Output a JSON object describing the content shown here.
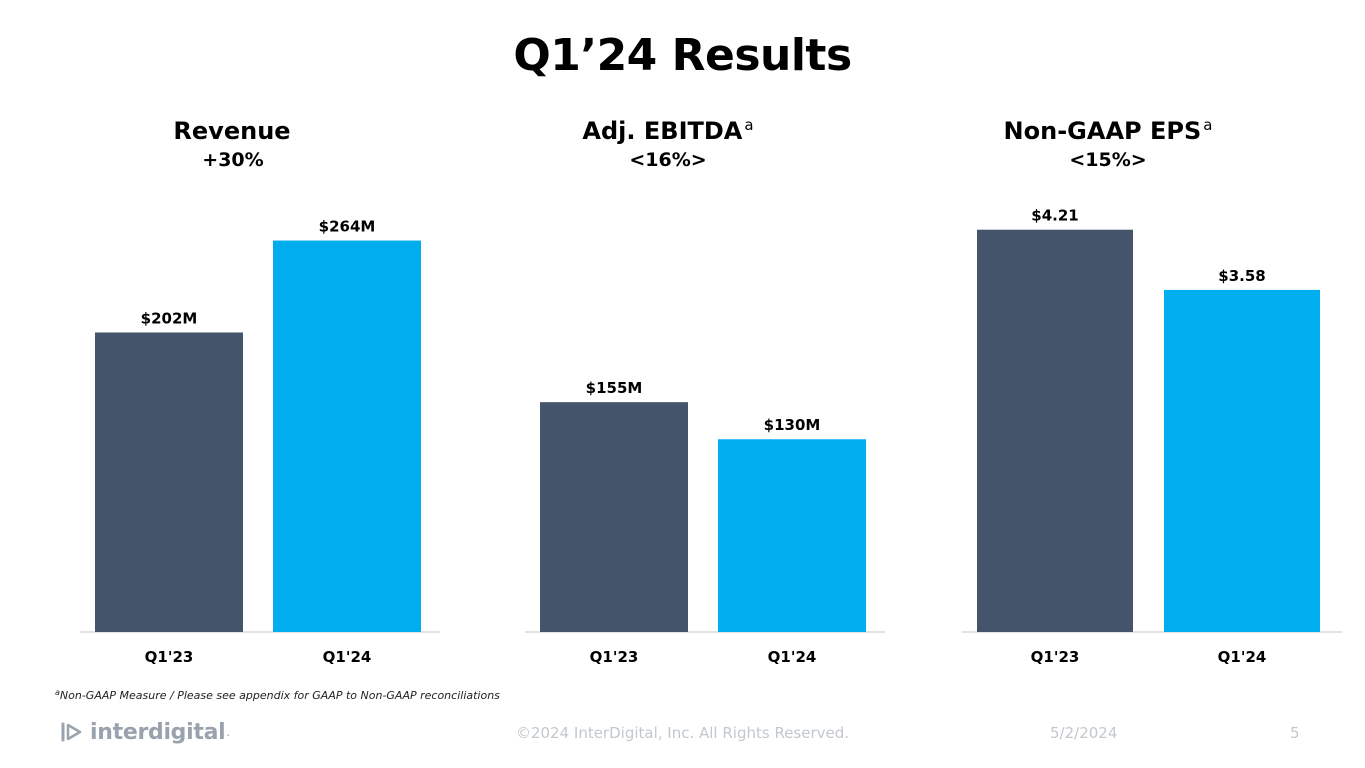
{
  "slide": {
    "title": "Q1’24 Results",
    "footnote_marker": "a",
    "footnote": "Non-GAAP Measure / Please see appendix for GAAP to Non-GAAP reconciliations",
    "logo_text": "interdigital",
    "logo_suffix": ".",
    "copyright": "©2024 InterDigital, Inc. All Rights Reserved.",
    "date": "5/2/2024",
    "page_number": "5"
  },
  "colors": {
    "q1_23": "#44546A",
    "q1_24": "#00AEEF",
    "baseline": "#d9d9d9",
    "text": "#000000",
    "muted": "#9aa3ad"
  },
  "chart_data": [
    {
      "type": "bar",
      "title": "Revenue",
      "title_marker": "",
      "change": "+30%",
      "categories": [
        "Q1'23",
        "Q1'24"
      ],
      "values": [
        202,
        264
      ],
      "value_labels": [
        "$202M",
        "$264M"
      ],
      "ylim": [
        0,
        290
      ]
    },
    {
      "type": "bar",
      "title": "Adj. EBITDA",
      "title_marker": "a",
      "change": "<16%>",
      "categories": [
        "Q1'23",
        "Q1'24"
      ],
      "values": [
        155,
        130
      ],
      "value_labels": [
        "$155M",
        "$130M"
      ],
      "ylim": [
        0,
        290
      ]
    },
    {
      "type": "bar",
      "title": "Non-GAAP EPS",
      "title_marker": "a",
      "change": "<15%>",
      "categories": [
        "Q1'23",
        "Q1'24"
      ],
      "values": [
        4.21,
        3.58
      ],
      "value_labels": [
        "$4.21",
        "$3.58"
      ],
      "ylim": [
        0,
        4.5
      ]
    }
  ]
}
